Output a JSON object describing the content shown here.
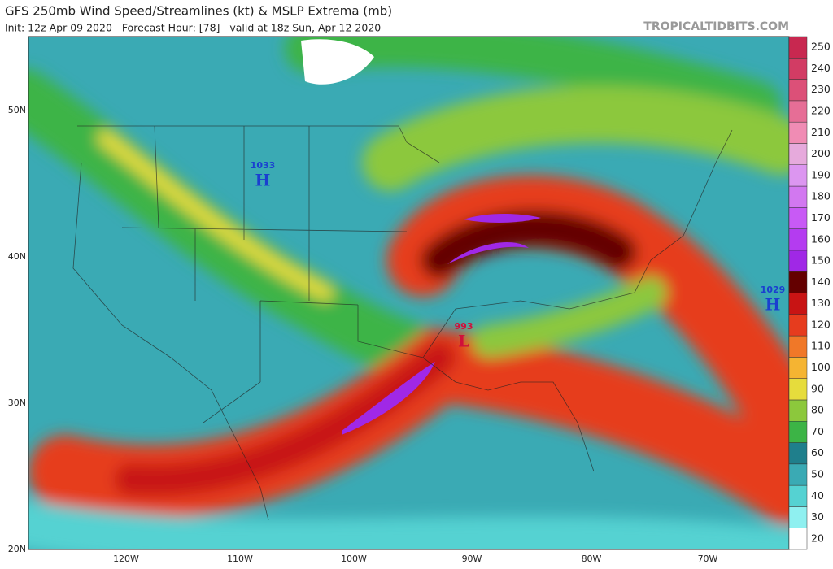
{
  "header": {
    "title": "GFS 250mb Wind Speed/Streamlines (kt) & MSLP Extrema (mb)",
    "subtitle": "Init: 12z Apr 09 2020   Forecast Hour: [78]   valid at 18z Sun, Apr 12 2020",
    "site": "TROPICALTIDBITS.COM"
  },
  "map": {
    "lat_labels": [
      "50N",
      "40N",
      "30N",
      "20N"
    ],
    "lon_labels": [
      "120W",
      "110W",
      "100W",
      "90W",
      "80W",
      "70W"
    ],
    "pressure_centers": [
      {
        "pressure": "1033",
        "label": "H"
      },
      {
        "pressure": "1029",
        "label": "H"
      },
      {
        "pressure": "993",
        "label": "L"
      }
    ]
  },
  "colorbar": {
    "levels": [
      20,
      30,
      40,
      50,
      60,
      70,
      80,
      90,
      100,
      110,
      120,
      130,
      140,
      150,
      160,
      170,
      180,
      190,
      200,
      210,
      220,
      230,
      240,
      250
    ],
    "colors": [
      "#ffffff",
      "#8ff0f0",
      "#55d2d2",
      "#3aaab4",
      "#1f7f8c",
      "#3cb446",
      "#8cc83c",
      "#e6dc3c",
      "#f5b432",
      "#f07828",
      "#e63c1e",
      "#c81414",
      "#640000",
      "#a028e6",
      "#b43cf0",
      "#c85af5",
      "#d278f0",
      "#dc96f0",
      "#e6aadc",
      "#f08cb4",
      "#e66e96",
      "#dc5078",
      "#d23c64",
      "#c82850"
    ]
  }
}
